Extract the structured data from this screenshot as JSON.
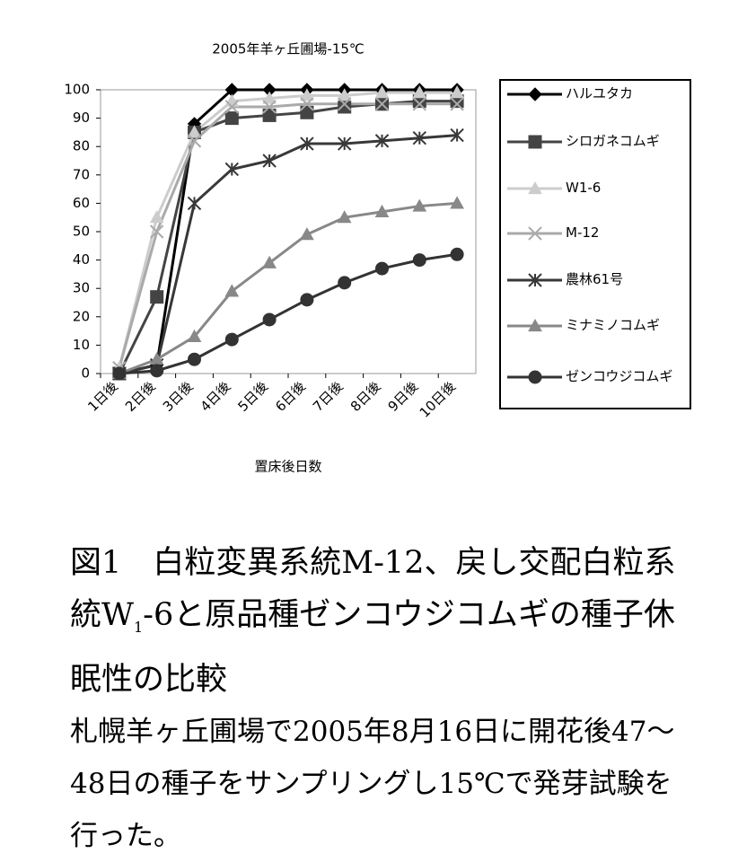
{
  "chart_data": {
    "type": "line",
    "title": "2005年羊ヶ丘圃場-15℃",
    "x_label": "置床後日数",
    "categories": [
      "1日後",
      "2日後",
      "3日後",
      "4日後",
      "5日後",
      "6日後",
      "7日後",
      "8日後",
      "9日後",
      "10日後"
    ],
    "ylim": [
      0,
      100
    ],
    "yticks": [
      0,
      10,
      20,
      30,
      40,
      50,
      60,
      70,
      80,
      90,
      100
    ],
    "grid": false,
    "legend": "right",
    "series": [
      {
        "name": "ハルユタカ",
        "color": "#000000",
        "marker": "diamond",
        "values": [
          0,
          3,
          88,
          100,
          100,
          100,
          100,
          100,
          100,
          100
        ]
      },
      {
        "name": "シロガネコムギ",
        "color": "#444444",
        "marker": "square",
        "values": [
          0,
          27,
          85,
          90,
          91,
          92,
          94,
          95,
          96,
          96
        ]
      },
      {
        "name": "W1-6",
        "color": "#cccccc",
        "marker": "triangle",
        "values": [
          2,
          55,
          85,
          96,
          97,
          98,
          98,
          99,
          99,
          99
        ]
      },
      {
        "name": "M-12",
        "color": "#aaaaaa",
        "marker": "x",
        "values": [
          2,
          50,
          82,
          94,
          94,
          95,
          95,
          95,
          95,
          95
        ]
      },
      {
        "name": "農林61号",
        "color": "#383838",
        "marker": "asterisk",
        "values": [
          0,
          3,
          60,
          72,
          75,
          81,
          81,
          82,
          83,
          84
        ]
      },
      {
        "name": "ミナミノコムギ",
        "color": "#888888",
        "marker": "triangle",
        "values": [
          0,
          5,
          13,
          29,
          39,
          49,
          55,
          57,
          59,
          60
        ]
      },
      {
        "name": "ゼンコウジコムギ",
        "color": "#333333",
        "marker": "circle",
        "values": [
          0,
          1,
          5,
          12,
          19,
          26,
          32,
          37,
          40,
          42
        ]
      }
    ]
  },
  "caption": {
    "title": [
      "図1　白粒変異系統M-12、戻し交配白粒系統W",
      "1",
      "-6と原品種ゼンコウジコムギの種子休眠性の比較"
    ],
    "body": "札幌羊ヶ丘圃場で2005年8月16日に開花後47〜48日の種子をサンプリングし15℃で発芽試験を行った。"
  }
}
